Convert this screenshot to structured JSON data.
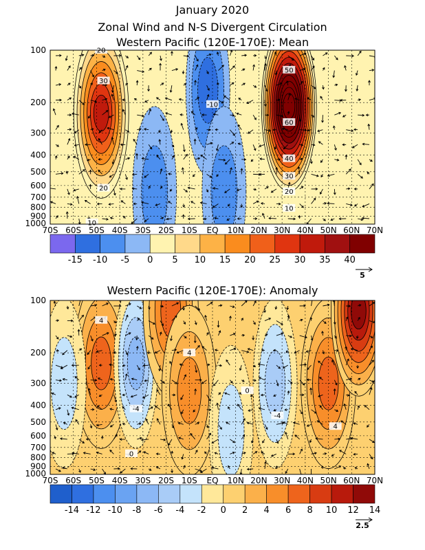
{
  "header": {
    "title": "January 2020",
    "subtitle": "Zonal Wind and N-S Divergent Circulation"
  },
  "chart_data": [
    {
      "type": "heatmap",
      "title": "Western Pacific (120E-170E): Mean",
      "x_ticks": [
        "70S",
        "60S",
        "50S",
        "40S",
        "30S",
        "20S",
        "10S",
        "EQ",
        "10N",
        "20N",
        "30N",
        "40N",
        "50N",
        "60N",
        "70N"
      ],
      "xlim": [
        -70,
        70
      ],
      "y_ticks": [
        "100",
        "200",
        "300",
        "400",
        "500",
        "600",
        "700",
        "800",
        "900",
        "1000"
      ],
      "ylim": [
        1000,
        100
      ],
      "y_scale": "log",
      "colorbar_labels": [
        "-15",
        "-10",
        "-5",
        "0",
        "5",
        "10",
        "15",
        "20",
        "25",
        "30",
        "35",
        "40"
      ],
      "colorbar_colors": [
        "#7b68ee",
        "#2f6fe0",
        "#4c8fef",
        "#8cb8f5",
        "#fff3b0",
        "#ffd98a",
        "#fdb246",
        "#fa8c1e",
        "#f0601a",
        "#e03510",
        "#c01a0c",
        "#a01010",
        "#800000"
      ],
      "contour_labels": [
        {
          "text": "20",
          "x": -48,
          "p": 100
        },
        {
          "text": "30",
          "x": -47,
          "p": 150
        },
        {
          "text": "20",
          "x": -47,
          "p": 620
        },
        {
          "text": "10",
          "x": -52,
          "p": 980
        },
        {
          "text": "-10",
          "x": 0,
          "p": 205
        },
        {
          "text": "50",
          "x": 33,
          "p": 130
        },
        {
          "text": "60",
          "x": 33,
          "p": 260
        },
        {
          "text": "40",
          "x": 33,
          "p": 420
        },
        {
          "text": "30",
          "x": 33,
          "p": 530
        },
        {
          "text": "20",
          "x": 33,
          "p": 650
        },
        {
          "text": "10",
          "x": 33,
          "p": 810
        }
      ],
      "features": [
        {
          "sign": "pos",
          "x": -48,
          "p": 230,
          "peak": 34
        },
        {
          "sign": "pos",
          "x": 33,
          "p": 210,
          "peak": 66
        },
        {
          "sign": "neg",
          "x": -2,
          "p": 170,
          "peak": -14
        },
        {
          "sign": "neg",
          "x": -25,
          "p": 650,
          "peak": -4
        },
        {
          "sign": "neg",
          "x": 5,
          "p": 650,
          "peak": -6
        }
      ],
      "vector_reference": "5"
    },
    {
      "type": "heatmap",
      "title": "Western Pacific (120E-170E): Anomaly",
      "x_ticks": [
        "70S",
        "60S",
        "50S",
        "40S",
        "30S",
        "20S",
        "10S",
        "EQ",
        "10N",
        "20N",
        "30N",
        "40N",
        "50N",
        "60N",
        "70N"
      ],
      "xlim": [
        -70,
        70
      ],
      "y_ticks": [
        "100",
        "200",
        "300",
        "400",
        "500",
        "600",
        "700",
        "800",
        "900",
        "1000"
      ],
      "ylim": [
        1000,
        100
      ],
      "y_scale": "log",
      "colorbar_labels": [
        "-14",
        "-12",
        "-10",
        "-8",
        "-6",
        "-4",
        "-2",
        "0",
        "2",
        "4",
        "6",
        "8",
        "10",
        "12",
        "14"
      ],
      "colorbar_colors": [
        "#1f5fcc",
        "#2f6fe0",
        "#4c8fef",
        "#6aa3f2",
        "#8cb8f5",
        "#a9ccf7",
        "#c4e3fb",
        "#ffe89a",
        "#fdd070",
        "#fbb04a",
        "#f88e2a",
        "#ee641c",
        "#d83c12",
        "#b81a0c",
        "#900a08"
      ],
      "contour_labels": [
        {
          "text": "4",
          "x": -48,
          "p": 130
        },
        {
          "text": "4",
          "x": -10,
          "p": 200
        },
        {
          "text": "-4",
          "x": -33,
          "p": 420
        },
        {
          "text": "0",
          "x": 15,
          "p": 330
        },
        {
          "text": "-4",
          "x": 28,
          "p": 460
        },
        {
          "text": "4",
          "x": 53,
          "p": 530
        },
        {
          "text": "0",
          "x": -35,
          "p": 760
        }
      ],
      "features": [
        {
          "sign": "pos",
          "x": -48,
          "p": 230,
          "peak": 8
        },
        {
          "sign": "neg",
          "x": -33,
          "p": 230,
          "peak": -7
        },
        {
          "sign": "pos",
          "x": -18,
          "p": 115,
          "peak": 8
        },
        {
          "sign": "pos",
          "x": -10,
          "p": 330,
          "peak": 6
        },
        {
          "sign": "neg",
          "x": 27,
          "p": 300,
          "peak": -6
        },
        {
          "sign": "pos",
          "x": 50,
          "p": 300,
          "peak": 7
        },
        {
          "sign": "pos",
          "x": 63,
          "p": 115,
          "peak": 13
        },
        {
          "sign": "neg",
          "x": -64,
          "p": 300,
          "peak": -3
        },
        {
          "sign": "neg",
          "x": 8,
          "p": 560,
          "peak": -4
        }
      ],
      "vector_reference": "2.5"
    }
  ]
}
